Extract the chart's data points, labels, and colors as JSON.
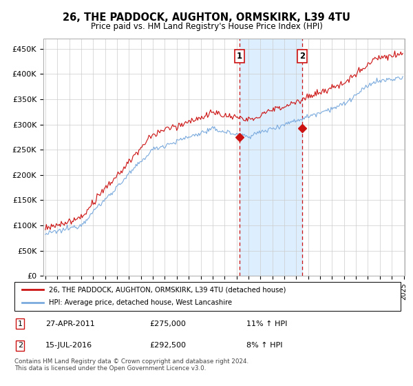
{
  "title": "26, THE PADDOCK, AUGHTON, ORMSKIRK, L39 4TU",
  "subtitle": "Price paid vs. HM Land Registry's House Price Index (HPI)",
  "ylim": [
    0,
    470000
  ],
  "yticks": [
    0,
    50000,
    100000,
    150000,
    200000,
    250000,
    300000,
    350000,
    400000,
    450000
  ],
  "ytick_labels": [
    "£0",
    "£50K",
    "£100K",
    "£150K",
    "£200K",
    "£250K",
    "£300K",
    "£350K",
    "£400K",
    "£450K"
  ],
  "hpi_color": "#7aaadd",
  "price_color": "#cc1111",
  "shade_color": "#ddeeff",
  "legend_line1": "26, THE PADDOCK, AUGHTON, ORMSKIRK, L39 4TU (detached house)",
  "legend_line2": "HPI: Average price, detached house, West Lancashire",
  "footnote": "Contains HM Land Registry data © Crown copyright and database right 2024.\nThis data is licensed under the Open Government Licence v3.0.",
  "background_color": "#ffffff",
  "marker1_price": 275000,
  "marker2_price": 292500
}
